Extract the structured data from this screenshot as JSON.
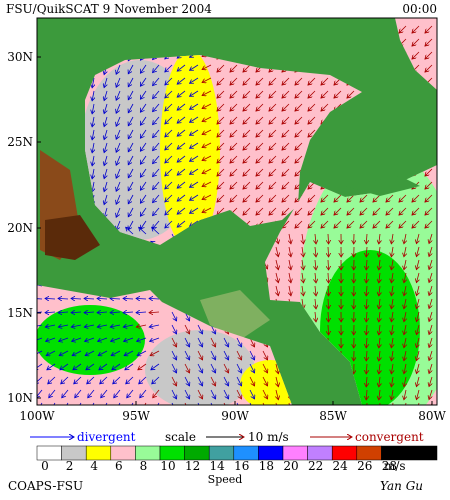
{
  "header": {
    "title": "FSU/QuikSCAT  9 November 2004",
    "time": "00:00"
  },
  "axes": {
    "lat_labels": [
      "30N",
      "25N",
      "20N",
      "15N",
      "10N"
    ],
    "lon_labels": [
      "100W",
      "95W",
      "90W",
      "85W",
      "80W"
    ]
  },
  "legend": {
    "divergent": "divergent",
    "scale": "scale",
    "scale_value": "10 m/s",
    "convergent": "convergent"
  },
  "colorbar": {
    "ticks": [
      "0",
      "2",
      "4",
      "6",
      "8",
      "10",
      "12",
      "14",
      "16",
      "18",
      "20",
      "22",
      "24",
      "26",
      "28"
    ],
    "colors": [
      "#ffffff",
      "#c8c8c8",
      "#ffff00",
      "#ffc0cb",
      "#98fb98",
      "#00e000",
      "#00aa00",
      "#40a0a0",
      "#1e90ff",
      "#0000ff",
      "#ff80ff",
      "#c080ff",
      "#ff0000",
      "#d04000",
      "#000000"
    ],
    "unit": "m/s",
    "label": "Speed"
  },
  "footer": {
    "left": "COAPS-FSU",
    "right": "Yan Gu"
  }
}
